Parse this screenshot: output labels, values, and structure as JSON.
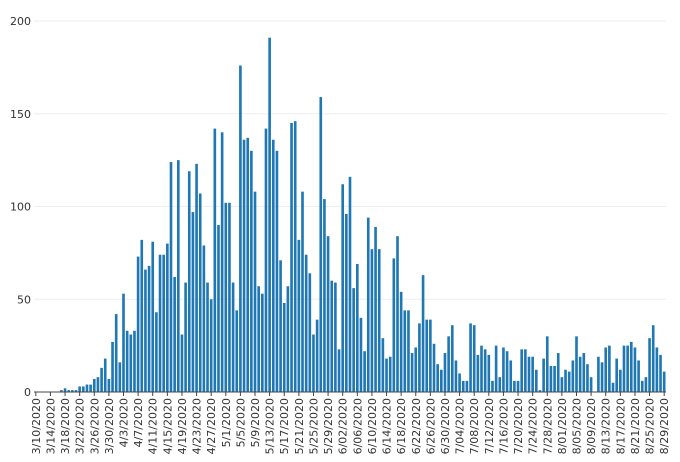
{
  "chart_data": {
    "type": "bar",
    "title": "",
    "xlabel": "",
    "ylabel": "",
    "ylim": [
      0,
      200
    ],
    "yticks": [
      0,
      50,
      100,
      150,
      200
    ],
    "grid": true,
    "legend": false,
    "bar_color": "#1f77b4",
    "start_date": "2020-03-10",
    "x_tick_labels": [
      "3/10/2020",
      "3/14/2020",
      "3/18/2020",
      "3/22/2020",
      "3/26/2020",
      "3/30/2020",
      "4/3/2020",
      "4/7/2020",
      "4/11/2020",
      "4/15/2020",
      "4/19/2020",
      "4/23/2020",
      "4/27/2020",
      "5/1/2020",
      "5/5/2020",
      "5/9/2020",
      "5/13/2020",
      "5/17/2020",
      "5/21/2020",
      "5/25/2020",
      "5/29/2020",
      "6/02/2020",
      "6/06/2020",
      "6/10/2020",
      "6/14/2020",
      "6/18/2020",
      "6/22/2020",
      "6/26/2020",
      "6/30/2020",
      "7/04/2020",
      "7/08/2020",
      "7/12/2020",
      "7/16/2020",
      "7/20/2020",
      "7/24/2020",
      "7/28/2020",
      "8/01/2020",
      "8/05/2020",
      "8/09/2020",
      "8/13/2020",
      "8/17/2020",
      "8/21/2020",
      "8/25/2020",
      "8/29/2020"
    ],
    "values": [
      0,
      0,
      0,
      0,
      0,
      0,
      0,
      1,
      2,
      1,
      1,
      1,
      3,
      3,
      4,
      4,
      7,
      8,
      13,
      18,
      7,
      27,
      42,
      16,
      53,
      33,
      31,
      33,
      73,
      82,
      66,
      68,
      81,
      43,
      74,
      74,
      80,
      124,
      62,
      125,
      31,
      59,
      119,
      97,
      123,
      107,
      79,
      59,
      50,
      142,
      90,
      140,
      102,
      102,
      59,
      44,
      176,
      136,
      137,
      130,
      108,
      57,
      53,
      142,
      191,
      136,
      130,
      71,
      48,
      57,
      145,
      146,
      82,
      108,
      74,
      64,
      31,
      39,
      159,
      104,
      84,
      60,
      59,
      23,
      112,
      96,
      116,
      56,
      69,
      40,
      22,
      94,
      77,
      89,
      77,
      29,
      18,
      19,
      72,
      84,
      54,
      44,
      44,
      21,
      24,
      37,
      63,
      39,
      39,
      26,
      15,
      12,
      21,
      30,
      36,
      17,
      10,
      6,
      6,
      37,
      36,
      20,
      25,
      23,
      20,
      6,
      25,
      8,
      24,
      22,
      17,
      6,
      6,
      23,
      23,
      19,
      19,
      12,
      1,
      18,
      30,
      14,
      14,
      21,
      8,
      12,
      11,
      17,
      30,
      19,
      21,
      15,
      8,
      0,
      19,
      16,
      24,
      25,
      5,
      18,
      12,
      25,
      25,
      27,
      24,
      17,
      6,
      8,
      29,
      36,
      24,
      20,
      11
    ]
  }
}
